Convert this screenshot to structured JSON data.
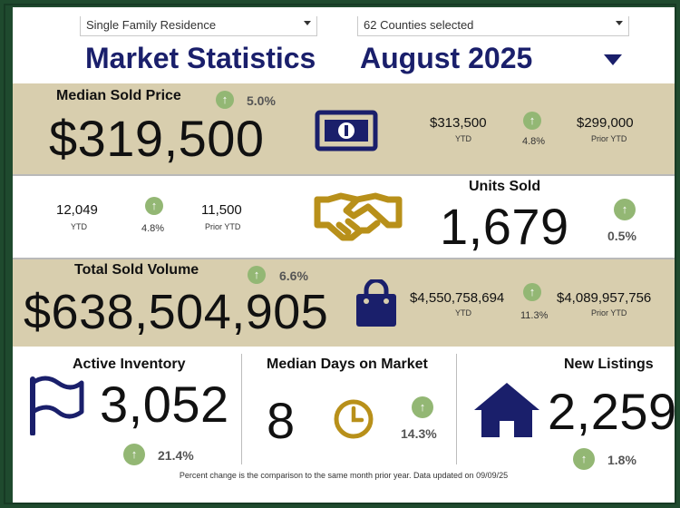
{
  "filters": {
    "property_type": "Single Family Residence",
    "counties": "62 Counties selected"
  },
  "header": {
    "title": "Market Statistics",
    "month": "August 2025"
  },
  "median_sold_price": {
    "label": "Median Sold Price",
    "value": "$319,500",
    "change": "5.0%",
    "ytd": "$313,500",
    "ytd_label": "YTD",
    "ytd_change": "4.8%",
    "prior_ytd": "$299,000",
    "prior_ytd_label": "Prior YTD",
    "icon": "money-bill-icon"
  },
  "units_sold": {
    "label": "Units Sold",
    "value": "1,679",
    "change": "0.5%",
    "ytd": "12,049",
    "ytd_label": "YTD",
    "ytd_change": "4.8%",
    "prior_ytd": "11,500",
    "prior_ytd_label": "Prior YTD",
    "icon": "handshake-icon"
  },
  "total_sold_volume": {
    "label": "Total Sold Volume",
    "value": "$638,504,905",
    "change": "6.6%",
    "ytd": "$4,550,758,694",
    "ytd_label": "YTD",
    "ytd_change": "11.3%",
    "prior_ytd": "$4,089,957,756",
    "prior_ytd_label": "Prior YTD",
    "icon": "shopping-bag-icon"
  },
  "active_inventory": {
    "label": "Active Inventory",
    "value": "3,052",
    "change": "21.4%",
    "icon": "flag-icon"
  },
  "days_on_market": {
    "label": "Median Days on Market",
    "value": "8",
    "change": "14.3%",
    "icon": "clock-icon"
  },
  "new_listings": {
    "label": "New Listings",
    "value": "2,259",
    "change": "1.8%",
    "icon": "house-icon"
  },
  "footnote": "Percent change is the comparison to the same month prior year. Data updated on 09/09/25",
  "colors": {
    "navy": "#1a1f6b",
    "tan": "#d8ceae",
    "gold": "#b8901a",
    "up_green": "#93b774",
    "frame_green": "#1f4a2e"
  }
}
